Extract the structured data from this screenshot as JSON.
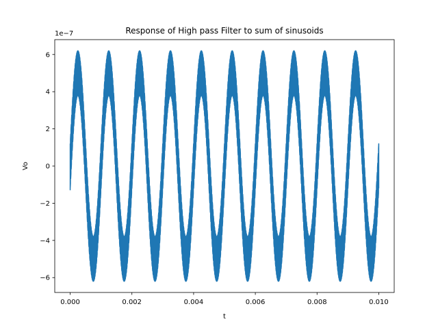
{
  "chart_data": {
    "type": "line",
    "title": "Response of High pass Filter to sum of sinusoids",
    "xlabel": "t",
    "ylabel": "Vo",
    "y_offset_text": "1e−7",
    "xlim": [
      -0.0005,
      0.0105
    ],
    "ylim": [
      -6.8,
      6.8
    ],
    "xticks": [
      0.0,
      0.002,
      0.004,
      0.006,
      0.008,
      0.01
    ],
    "xtick_labels": [
      "0.000",
      "0.002",
      "0.004",
      "0.006",
      "0.008",
      "0.010"
    ],
    "yticks": [
      -6,
      -4,
      -2,
      0,
      2,
      4,
      6
    ],
    "ytick_labels": [
      "−6",
      "−4",
      "−2",
      "0",
      "2",
      "4",
      "6"
    ],
    "grid": false,
    "legend": "none",
    "color": "#1f77b4",
    "series": [
      {
        "x_range": [
          0.0,
          0.01
        ],
        "y_start": -1.3,
        "components": [
          {
            "amplitude": 5.0,
            "frequency_hz": 1000
          },
          {
            "amplitude": 1.2,
            "frequency_hz": 100000
          }
        ]
      }
    ]
  }
}
